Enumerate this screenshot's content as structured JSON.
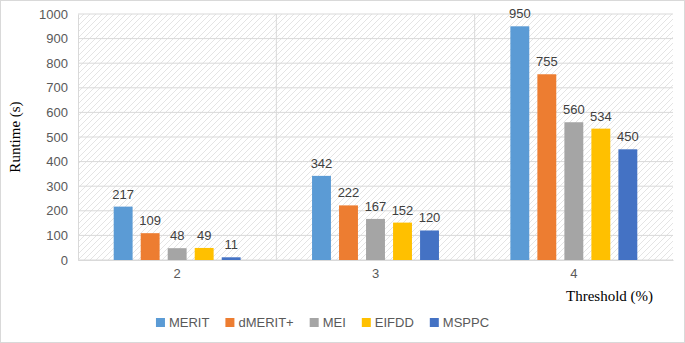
{
  "chart_data": {
    "type": "bar",
    "x_label": "Threshold (%)",
    "y_label": "Runtime (s)",
    "categories": [
      "2",
      "3",
      "4"
    ],
    "series": [
      {
        "name": "MERIT",
        "color": "#5b9bd5",
        "values": [
          217,
          342,
          950
        ]
      },
      {
        "name": "dMERIT+",
        "color": "#ed7d31",
        "values": [
          109,
          222,
          755
        ]
      },
      {
        "name": "MEI",
        "color": "#a5a5a5",
        "values": [
          48,
          167,
          560
        ]
      },
      {
        "name": "EIFDD",
        "color": "#ffc000",
        "values": [
          49,
          152,
          534
        ]
      },
      {
        "name": "MSPPC",
        "color": "#4472c4",
        "values": [
          11,
          120,
          450
        ]
      }
    ],
    "ylim": [
      0,
      1000
    ],
    "yticks": [
      0,
      100,
      200,
      300,
      400,
      500,
      600,
      700,
      800,
      900,
      1000
    ],
    "grid": true,
    "legend": "bottom",
    "data_labels": true
  }
}
